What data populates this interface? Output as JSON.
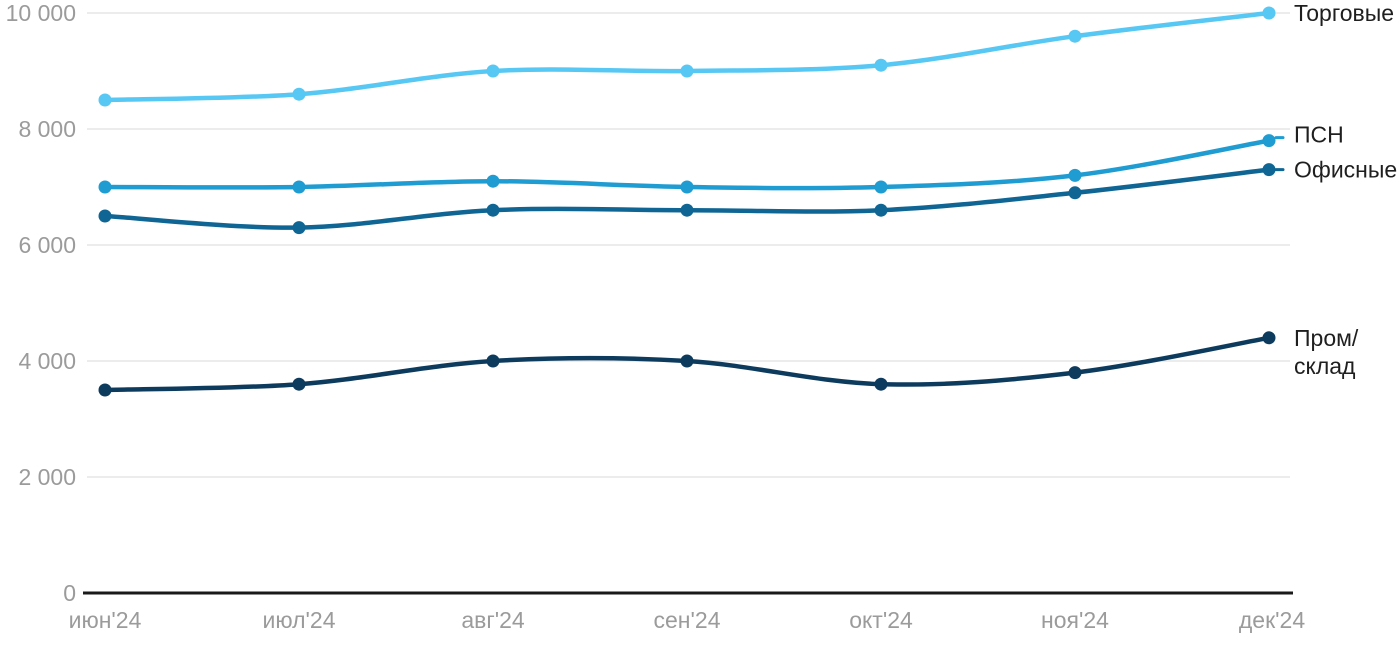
{
  "chart_data": {
    "type": "line",
    "title": "",
    "xlabel": "",
    "ylabel": "",
    "grid": "horizontal",
    "legend_position": "right-end-labels",
    "x": [
      "июн'24",
      "июл'24",
      "авг'24",
      "сен'24",
      "окт'24",
      "ноя'24",
      "дек'24"
    ],
    "y_ticks": [
      0,
      2000,
      4000,
      6000,
      8000,
      10000
    ],
    "y_tick_labels": [
      "0",
      "2 000",
      "4 000",
      "6 000",
      "8 000",
      "10 000"
    ],
    "ylim": [
      0,
      10000
    ],
    "series": [
      {
        "name": "Торговые",
        "slug": "torgovye",
        "color": "#57C7F3",
        "values": [
          8500,
          8600,
          9000,
          9000,
          9100,
          9600,
          10000
        ],
        "label_lines": [
          "Торговые"
        ],
        "label_dy": 0,
        "leader_dash": false
      },
      {
        "name": "ПСН",
        "slug": "psn",
        "color": "#1F9CD1",
        "values": [
          7000,
          7000,
          7100,
          7000,
          7000,
          7200,
          7800
        ],
        "label_lines": [
          "ПСН"
        ],
        "label_dy": -6,
        "leader_dash": true
      },
      {
        "name": "Офисные",
        "slug": "ofisnye",
        "color": "#0F6593",
        "values": [
          6500,
          6300,
          6600,
          6600,
          6600,
          6900,
          7300
        ],
        "label_lines": [
          "Офисные"
        ],
        "label_dy": 0,
        "leader_dash": true
      },
      {
        "name": "Пром/склад",
        "slug": "prom-sklad",
        "color": "#0D3B5E",
        "values": [
          3500,
          3600,
          4000,
          4000,
          3600,
          3800,
          4400
        ],
        "label_lines": [
          "Пром/",
          "склад"
        ],
        "label_dy": 0,
        "leader_dash": false
      }
    ],
    "colors": {
      "grid": "#e6e6e6",
      "axis": "#1a1a1a",
      "tick_label": "#9b9b9b",
      "series_label": "#1f1f1f",
      "background": "#ffffff"
    }
  }
}
